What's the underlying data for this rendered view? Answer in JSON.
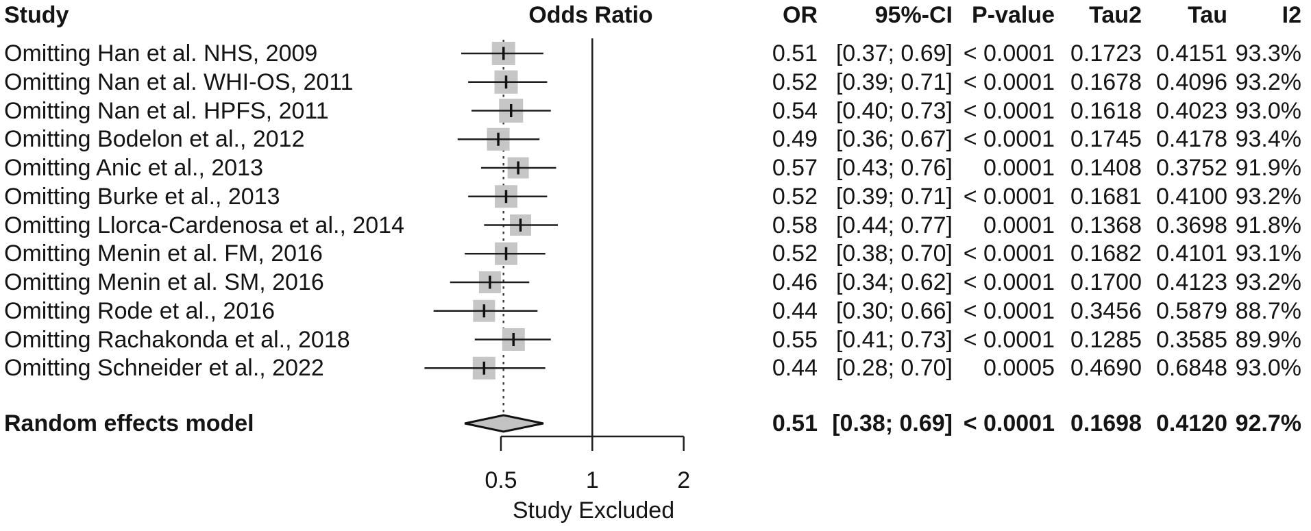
{
  "header": {
    "study": "Study",
    "odds_ratio": "Odds Ratio",
    "or": "OR",
    "ci": "95%-CI",
    "p_value": "P-value",
    "tau2": "Tau2",
    "tau": "Tau",
    "i2": "I2"
  },
  "colors": {
    "marker_fill": "#c6c6c6",
    "diamond_fill": "#c3c3c3",
    "line": "#1d1d1d",
    "tick_marker": "#111111",
    "dashed_line": "#3a3a3a"
  },
  "chart_data": {
    "type": "forest",
    "title": "Odds Ratio",
    "x_scale": "log2",
    "x_axis_label": "Study Excluded",
    "x_ticks": [
      {
        "value": 0.5,
        "label": "0.5"
      },
      {
        "value": 1,
        "label": "1"
      },
      {
        "value": 2,
        "label": "2"
      }
    ],
    "x_range": [
      0.5,
      2
    ],
    "reference_line": 1,
    "pooled_dashed_line": 0.51,
    "studies": [
      {
        "label": "Omitting Han et al. NHS, 2009",
        "or": 0.51,
        "lo": 0.37,
        "hi": 0.69,
        "p": "< 0.0001",
        "tau2": "0.1723",
        "tau": "0.4151",
        "i2": "93.3%",
        "size": 34
      },
      {
        "label": "Omitting Nan et al. WHI-OS, 2011",
        "or": 0.52,
        "lo": 0.39,
        "hi": 0.71,
        "p": "< 0.0001",
        "tau2": "0.1678",
        "tau": "0.4096",
        "i2": "93.2%",
        "size": 34
      },
      {
        "label": "Omitting Nan et al. HPFS, 2011",
        "or": 0.54,
        "lo": 0.4,
        "hi": 0.73,
        "p": "< 0.0001",
        "tau2": "0.1618",
        "tau": "0.4023",
        "i2": "93.0%",
        "size": 35
      },
      {
        "label": "Omitting Bodelon et al., 2012",
        "or": 0.49,
        "lo": 0.36,
        "hi": 0.67,
        "p": "< 0.0001",
        "tau2": "0.1745",
        "tau": "0.4178",
        "i2": "93.4%",
        "size": 33
      },
      {
        "label": "Omitting Anic et al., 2013",
        "or": 0.57,
        "lo": 0.43,
        "hi": 0.76,
        "p": "0.0001",
        "tau2": "0.1408",
        "tau": "0.3752",
        "i2": "91.9%",
        "size": 31
      },
      {
        "label": "Omitting Burke et al., 2013",
        "or": 0.52,
        "lo": 0.39,
        "hi": 0.71,
        "p": "< 0.0001",
        "tau2": "0.1681",
        "tau": "0.4100",
        "i2": "93.2%",
        "size": 33
      },
      {
        "label": "Omitting Llorca-Cardenosa et al., 2014",
        "or": 0.58,
        "lo": 0.44,
        "hi": 0.77,
        "p": "0.0001",
        "tau2": "0.1368",
        "tau": "0.3698",
        "i2": "91.8%",
        "size": 31
      },
      {
        "label": "Omitting Menin et al. FM, 2016",
        "or": 0.52,
        "lo": 0.38,
        "hi": 0.7,
        "p": "< 0.0001",
        "tau2": "0.1682",
        "tau": "0.4101",
        "i2": "93.1%",
        "size": 33
      },
      {
        "label": "Omitting Menin et al. SM, 2016",
        "or": 0.46,
        "lo": 0.34,
        "hi": 0.62,
        "p": "< 0.0001",
        "tau2": "0.1700",
        "tau": "0.4123",
        "i2": "93.2%",
        "size": 32
      },
      {
        "label": "Omitting Rode et al., 2016",
        "or": 0.44,
        "lo": 0.3,
        "hi": 0.66,
        "p": "< 0.0001",
        "tau2": "0.3456",
        "tau": "0.5879",
        "i2": "88.7%",
        "size": 32
      },
      {
        "label": "Omitting Rachakonda et al., 2018",
        "or": 0.55,
        "lo": 0.41,
        "hi": 0.73,
        "p": "< 0.0001",
        "tau2": "0.1285",
        "tau": "0.3585",
        "i2": "89.9%",
        "size": 33
      },
      {
        "label": "Omitting Schneider et al., 2022",
        "or": 0.44,
        "lo": 0.28,
        "hi": 0.7,
        "p": "0.0005",
        "tau2": "0.4690",
        "tau": "0.6848",
        "i2": "93.0%",
        "size": 33
      }
    ],
    "summary": {
      "label": "Random effects model",
      "or": 0.51,
      "lo": 0.38,
      "hi": 0.69,
      "p": "< 0.0001",
      "tau2": "0.1698",
      "tau": "0.4120",
      "i2": "92.7%"
    }
  }
}
